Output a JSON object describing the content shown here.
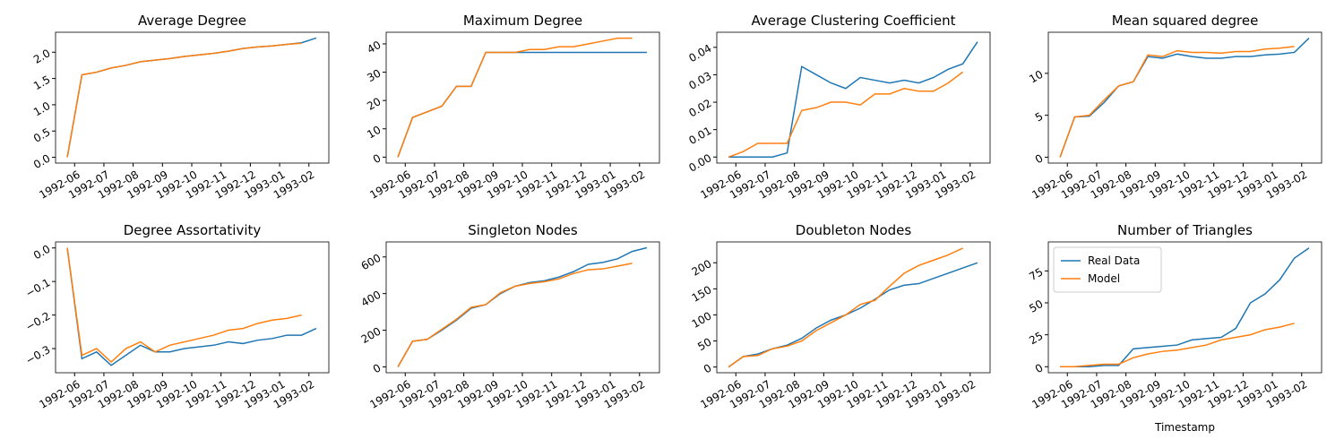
{
  "chart_data": [
    {
      "type": "line",
      "title": "Average Degree",
      "x": [
        5.75,
        6.25,
        6.75,
        7.25,
        7.75,
        8.25,
        8.75,
        9.25,
        9.75,
        10.25,
        10.75,
        11.25,
        11.75,
        12.25,
        12.75,
        13.25,
        13.75,
        14.25
      ],
      "series": [
        {
          "name": "Real Data",
          "color": "#1f77b4",
          "values": [
            0,
            1.57,
            1.62,
            1.7,
            1.75,
            1.82,
            1.85,
            1.88,
            1.92,
            1.95,
            1.98,
            2.02,
            2.07,
            2.1,
            2.12,
            2.15,
            2.18,
            2.27
          ]
        },
        {
          "name": "Model",
          "color": "#ff7f0e",
          "values": [
            0,
            1.57,
            1.62,
            1.7,
            1.75,
            1.82,
            1.85,
            1.88,
            1.92,
            1.95,
            1.98,
            2.02,
            2.07,
            2.1,
            2.12,
            2.15,
            2.17,
            null
          ]
        }
      ],
      "xlim": [
        5.35,
        14.68
      ],
      "xticks": [
        {
          "value": 6,
          "label": "1992-06"
        },
        {
          "value": 7,
          "label": "1992-07"
        },
        {
          "value": 8,
          "label": "1992-08"
        },
        {
          "value": 9,
          "label": "1992-09"
        },
        {
          "value": 10,
          "label": "1992-10"
        },
        {
          "value": 11,
          "label": "1992-11"
        },
        {
          "value": 12,
          "label": "1992-12"
        },
        {
          "value": 13,
          "label": "1993-01"
        },
        {
          "value": 14,
          "label": "1993-02"
        }
      ],
      "ylim": [
        -0.11,
        2.38
      ],
      "yticks": [
        {
          "value": 0,
          "label": "0.0"
        },
        {
          "value": 0.5,
          "label": "0.5"
        },
        {
          "value": 1,
          "label": "1.0"
        },
        {
          "value": 1.5,
          "label": "1.5"
        },
        {
          "value": 2,
          "label": "2.0"
        }
      ]
    },
    {
      "type": "line",
      "title": "Maximum Degree",
      "x": [
        5.75,
        6.25,
        6.75,
        7.25,
        7.75,
        8.25,
        8.75,
        9.25,
        9.75,
        10.25,
        10.75,
        11.25,
        11.75,
        12.25,
        12.75,
        13.25,
        13.75,
        14.25
      ],
      "series": [
        {
          "name": "Real Data",
          "color": "#1f77b4",
          "values": [
            0,
            14,
            16,
            18,
            25,
            25,
            37,
            37,
            37,
            37,
            37,
            37,
            37,
            37,
            37,
            37,
            37,
            37
          ]
        },
        {
          "name": "Model",
          "color": "#ff7f0e",
          "values": [
            0,
            14,
            16,
            18,
            25,
            25,
            37,
            37,
            37,
            38,
            38,
            39,
            39,
            40,
            41,
            42,
            42,
            null
          ]
        }
      ],
      "xlim": [
        5.35,
        14.68
      ],
      "xticks": [
        {
          "value": 6,
          "label": "1992-06"
        },
        {
          "value": 7,
          "label": "1992-07"
        },
        {
          "value": 8,
          "label": "1992-08"
        },
        {
          "value": 9,
          "label": "1992-09"
        },
        {
          "value": 10,
          "label": "1992-10"
        },
        {
          "value": 11,
          "label": "1992-11"
        },
        {
          "value": 12,
          "label": "1992-12"
        },
        {
          "value": 13,
          "label": "1993-01"
        },
        {
          "value": 14,
          "label": "1993-02"
        }
      ],
      "ylim": [
        -2.1,
        44.1
      ],
      "yticks": [
        0,
        10,
        20,
        30,
        40
      ]
    },
    {
      "type": "line",
      "title": "Average Clustering Coefficient",
      "x": [
        5.75,
        6.25,
        6.75,
        7.25,
        7.75,
        8.25,
        8.75,
        9.25,
        9.75,
        10.25,
        10.75,
        11.25,
        11.75,
        12.25,
        12.75,
        13.25,
        13.75,
        14.25
      ],
      "series": [
        {
          "name": "Real Data",
          "color": "#1f77b4",
          "values": [
            0,
            0,
            0,
            0,
            0.0015,
            0.033,
            0.03,
            0.027,
            0.025,
            0.029,
            0.028,
            0.027,
            0.028,
            0.027,
            0.029,
            0.032,
            0.034,
            0.042
          ]
        },
        {
          "name": "Model",
          "color": "#ff7f0e",
          "values": [
            0,
            0.002,
            0.005,
            0.005,
            0.005,
            0.017,
            0.018,
            0.02,
            0.02,
            0.019,
            0.023,
            0.023,
            0.025,
            0.024,
            0.024,
            0.027,
            0.031,
            null
          ]
        }
      ],
      "xlim": [
        5.35,
        14.68
      ],
      "xticks": [
        {
          "value": 6,
          "label": "1992-06"
        },
        {
          "value": 7,
          "label": "1992-07"
        },
        {
          "value": 8,
          "label": "1992-08"
        },
        {
          "value": 9,
          "label": "1992-09"
        },
        {
          "value": 10,
          "label": "1992-10"
        },
        {
          "value": 11,
          "label": "1992-11"
        },
        {
          "value": 12,
          "label": "1992-12"
        },
        {
          "value": 13,
          "label": "1993-01"
        },
        {
          "value": 14,
          "label": "1993-02"
        }
      ],
      "ylim": [
        -0.0022,
        0.0455
      ],
      "yticks": [
        {
          "value": 0,
          "label": "0.00"
        },
        {
          "value": 0.01,
          "label": "0.01"
        },
        {
          "value": 0.02,
          "label": "0.02"
        },
        {
          "value": 0.03,
          "label": "0.03"
        },
        {
          "value": 0.04,
          "label": "0.04"
        }
      ]
    },
    {
      "type": "line",
      "title": "Mean squared degree",
      "x": [
        5.75,
        6.25,
        6.75,
        7.25,
        7.75,
        8.25,
        8.75,
        9.25,
        9.75,
        10.25,
        10.75,
        11.25,
        11.75,
        12.25,
        12.75,
        13.25,
        13.75,
        14.25
      ],
      "series": [
        {
          "name": "Real Data",
          "color": "#1f77b4",
          "values": [
            0,
            4.8,
            4.9,
            6.5,
            8.5,
            9,
            12,
            11.8,
            12.3,
            12,
            11.8,
            11.8,
            12,
            12,
            12.2,
            12.3,
            12.5,
            14.2
          ]
        },
        {
          "name": "Model",
          "color": "#ff7f0e",
          "values": [
            0,
            4.8,
            5,
            6.8,
            8.5,
            9,
            12.2,
            12,
            12.7,
            12.5,
            12.5,
            12.4,
            12.6,
            12.6,
            12.9,
            13,
            13.2,
            null
          ]
        }
      ],
      "xlim": [
        5.35,
        14.68
      ],
      "xticks": [
        {
          "value": 6,
          "label": "1992-06"
        },
        {
          "value": 7,
          "label": "1992-07"
        },
        {
          "value": 8,
          "label": "1992-08"
        },
        {
          "value": 9,
          "label": "1992-09"
        },
        {
          "value": 10,
          "label": "1992-10"
        },
        {
          "value": 11,
          "label": "1992-11"
        },
        {
          "value": 12,
          "label": "1992-12"
        },
        {
          "value": 13,
          "label": "1993-01"
        },
        {
          "value": 14,
          "label": "1993-02"
        }
      ],
      "ylim": [
        -0.7,
        14.9
      ],
      "yticks": [
        0,
        5,
        10
      ]
    },
    {
      "type": "line",
      "title": "Degree Assortativity",
      "x": [
        5.75,
        6.25,
        6.75,
        7.25,
        7.75,
        8.25,
        8.75,
        9.25,
        9.75,
        10.25,
        10.75,
        11.25,
        11.75,
        12.25,
        12.75,
        13.25,
        13.75,
        14.25
      ],
      "series": [
        {
          "name": "Real Data",
          "color": "#1f77b4",
          "values": [
            0,
            -0.33,
            -0.31,
            -0.35,
            -0.32,
            -0.29,
            -0.31,
            -0.31,
            -0.3,
            -0.295,
            -0.29,
            -0.28,
            -0.285,
            -0.275,
            -0.27,
            -0.26,
            -0.26,
            -0.24
          ]
        },
        {
          "name": "Model",
          "color": "#ff7f0e",
          "values": [
            0,
            -0.32,
            -0.3,
            -0.34,
            -0.3,
            -0.28,
            -0.31,
            -0.29,
            -0.28,
            -0.27,
            -0.26,
            -0.245,
            -0.24,
            -0.225,
            -0.215,
            -0.21,
            -0.2,
            null
          ]
        }
      ],
      "xlim": [
        5.35,
        14.68
      ],
      "xticks": [
        {
          "value": 6,
          "label": "1992-06"
        },
        {
          "value": 7,
          "label": "1992-07"
        },
        {
          "value": 8,
          "label": "1992-08"
        },
        {
          "value": 9,
          "label": "1992-09"
        },
        {
          "value": 10,
          "label": "1992-10"
        },
        {
          "value": 11,
          "label": "1992-11"
        },
        {
          "value": 12,
          "label": "1992-12"
        },
        {
          "value": 13,
          "label": "1993-01"
        },
        {
          "value": 14,
          "label": "1993-02"
        }
      ],
      "ylim": [
        -0.372,
        0.018
      ],
      "yticks": [
        {
          "value": 0,
          "label": "0.0"
        },
        {
          "value": -0.1,
          "label": "−0.1"
        },
        {
          "value": -0.2,
          "label": "−0.2"
        },
        {
          "value": -0.3,
          "label": "−0.3"
        }
      ]
    },
    {
      "type": "line",
      "title": "Singleton Nodes",
      "x": [
        5.75,
        6.25,
        6.75,
        7.25,
        7.75,
        8.25,
        8.75,
        9.25,
        9.75,
        10.25,
        10.75,
        11.25,
        11.75,
        12.25,
        12.75,
        13.25,
        13.75,
        14.25
      ],
      "series": [
        {
          "name": "Real Data",
          "color": "#1f77b4",
          "values": [
            0,
            140,
            150,
            200,
            255,
            320,
            340,
            400,
            440,
            460,
            470,
            490,
            520,
            560,
            570,
            590,
            630,
            650
          ]
        },
        {
          "name": "Model",
          "color": "#ff7f0e",
          "values": [
            0,
            140,
            150,
            205,
            260,
            325,
            340,
            405,
            440,
            455,
            465,
            480,
            510,
            530,
            535,
            550,
            565,
            null
          ]
        }
      ],
      "xlim": [
        5.35,
        14.68
      ],
      "xticks": [
        {
          "value": 6,
          "label": "1992-06"
        },
        {
          "value": 7,
          "label": "1992-07"
        },
        {
          "value": 8,
          "label": "1992-08"
        },
        {
          "value": 9,
          "label": "1992-09"
        },
        {
          "value": 10,
          "label": "1992-10"
        },
        {
          "value": 11,
          "label": "1992-11"
        },
        {
          "value": 12,
          "label": "1992-12"
        },
        {
          "value": 13,
          "label": "1993-01"
        },
        {
          "value": 14,
          "label": "1993-02"
        }
      ],
      "ylim": [
        -32,
        682
      ],
      "yticks": [
        0,
        200,
        400,
        600
      ]
    },
    {
      "type": "line",
      "title": "Doubleton Nodes",
      "x": [
        5.75,
        6.25,
        6.75,
        7.25,
        7.75,
        8.25,
        8.75,
        9.25,
        9.75,
        10.25,
        10.75,
        11.25,
        11.75,
        12.25,
        12.75,
        13.25,
        13.75,
        14.25
      ],
      "series": [
        {
          "name": "Real Data",
          "color": "#1f77b4",
          "values": [
            0,
            20,
            25,
            35,
            42,
            55,
            75,
            90,
            100,
            113,
            130,
            148,
            157,
            160,
            170,
            180,
            190,
            200
          ]
        },
        {
          "name": "Model",
          "color": "#ff7f0e",
          "values": [
            0,
            20,
            22,
            35,
            40,
            50,
            70,
            85,
            100,
            120,
            128,
            155,
            180,
            195,
            205,
            215,
            228,
            null
          ]
        }
      ],
      "xlim": [
        5.35,
        14.68
      ],
      "xticks": [
        {
          "value": 6,
          "label": "1992-06"
        },
        {
          "value": 7,
          "label": "1992-07"
        },
        {
          "value": 8,
          "label": "1992-08"
        },
        {
          "value": 9,
          "label": "1992-09"
        },
        {
          "value": 10,
          "label": "1992-10"
        },
        {
          "value": 11,
          "label": "1992-11"
        },
        {
          "value": 12,
          "label": "1992-12"
        },
        {
          "value": 13,
          "label": "1993-01"
        },
        {
          "value": 14,
          "label": "1993-02"
        }
      ],
      "ylim": [
        -11,
        240
      ],
      "yticks": [
        0,
        50,
        100,
        150,
        200
      ]
    },
    {
      "type": "line",
      "title": "Number of Triangles",
      "xlabel": "Timestamp",
      "legend": "upper left",
      "x": [
        5.75,
        6.25,
        6.75,
        7.25,
        7.75,
        8.25,
        8.75,
        9.25,
        9.75,
        10.25,
        10.75,
        11.25,
        11.75,
        12.25,
        12.75,
        13.25,
        13.75,
        14.25
      ],
      "series": [
        {
          "name": "Real Data",
          "color": "#1f77b4",
          "values": [
            0,
            0,
            0,
            1,
            1,
            14,
            15,
            16,
            17,
            21,
            22,
            23,
            30,
            50,
            57,
            68,
            85,
            93
          ]
        },
        {
          "name": "Model",
          "color": "#ff7f0e",
          "values": [
            0,
            0,
            1,
            2,
            2,
            7,
            10,
            12,
            13,
            15,
            17,
            21,
            23,
            25,
            29,
            31,
            34,
            null
          ]
        }
      ],
      "xlim": [
        5.35,
        14.68
      ],
      "xticks": [
        {
          "value": 6,
          "label": "1992-06"
        },
        {
          "value": 7,
          "label": "1992-07"
        },
        {
          "value": 8,
          "label": "1992-08"
        },
        {
          "value": 9,
          "label": "1992-09"
        },
        {
          "value": 10,
          "label": "1992-10"
        },
        {
          "value": 11,
          "label": "1992-11"
        },
        {
          "value": 12,
          "label": "1992-12"
        },
        {
          "value": 13,
          "label": "1993-01"
        },
        {
          "value": 14,
          "label": "1993-02"
        }
      ],
      "ylim": [
        -4.7,
        97.7
      ],
      "yticks": [
        0,
        25,
        50,
        75
      ]
    }
  ]
}
